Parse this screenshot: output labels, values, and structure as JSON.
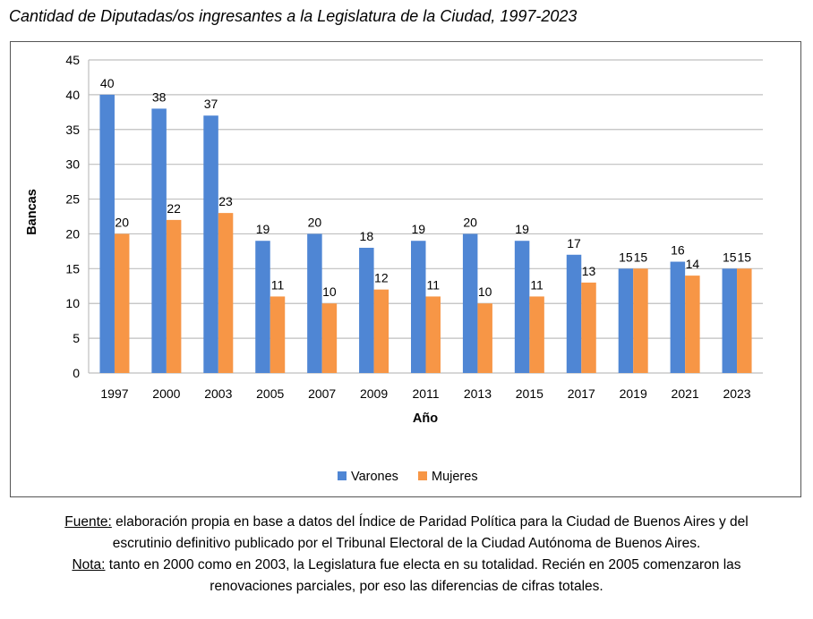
{
  "title": "Cantidad de Diputadas/os ingresantes a la Legislatura de la Ciudad, 1997-2023",
  "notes": {
    "source_label": "Fuente:",
    "source_line1": " elaboración propia en base a datos del Índice de Paridad Política para la Ciudad de Buenos Aires y del",
    "source_line2": "escrutinio definitivo publicado por el Tribunal Electoral de la Ciudad Autónoma de Buenos Aires.",
    "note_label": "Nota:",
    "note_line1": " tanto en 2000 como en 2003, la Legislatura fue electa en su totalidad. Recién en 2005 comenzaron las",
    "note_line2": "renovaciones parciales, por eso las diferencias de cifras totales."
  },
  "chart_data": {
    "type": "bar",
    "categories": [
      "1997",
      "2000",
      "2003",
      "2005",
      "2007",
      "2009",
      "2011",
      "2013",
      "2015",
      "2017",
      "2019",
      "2021",
      "2023"
    ],
    "series": [
      {
        "name": "Varones",
        "color": "#4f86d4",
        "values": [
          40,
          38,
          37,
          19,
          20,
          18,
          19,
          20,
          19,
          17,
          15,
          16,
          15
        ]
      },
      {
        "name": "Mujeres",
        "color": "#f79646",
        "values": [
          20,
          22,
          23,
          11,
          10,
          12,
          11,
          10,
          11,
          13,
          15,
          14,
          15
        ]
      }
    ],
    "xlabel": "Año",
    "ylabel": "Bancas",
    "ylim": [
      0,
      45
    ],
    "yticks": [
      0,
      5,
      10,
      15,
      20,
      25,
      30,
      35,
      40,
      45
    ],
    "grid": true,
    "legend_position": "bottom"
  }
}
